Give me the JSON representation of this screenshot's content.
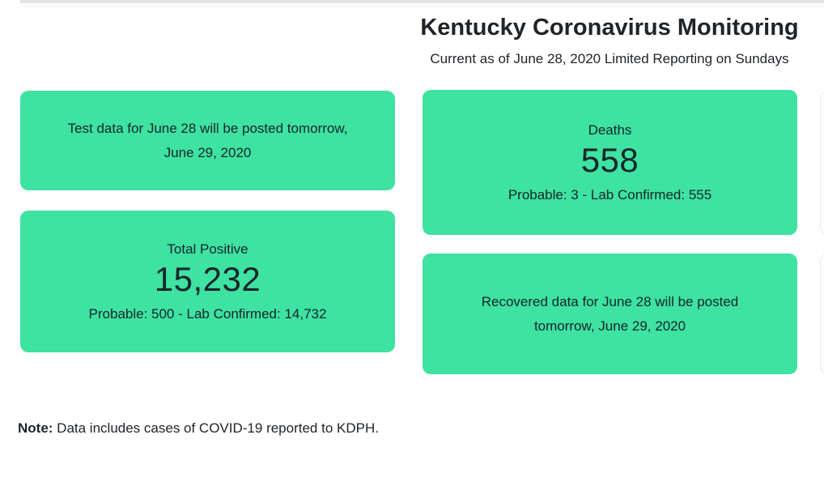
{
  "page": {
    "title": "Kentucky Coronavirus Monitoring",
    "subtitle": "Current as of June 28, 2020 Limited Reporting on Sundays",
    "note_label": "Note:",
    "note_text": " Data includes cases of COVID-19 reported to KDPH."
  },
  "colors": {
    "card_green": "#3ee2a1",
    "text_dark": "#212529",
    "topbar_gray": "#e3e3e3"
  },
  "cards": {
    "test_notice": {
      "lines": [
        "Test data for June 28 will be posted tomorrow,",
        "June 29, 2020"
      ]
    },
    "deaths": {
      "label": "Deaths",
      "value": "558",
      "detail": "Probable: 3 - Lab Confirmed: 555"
    },
    "total_positive": {
      "label": "Total Positive",
      "value": "15,232",
      "detail": "Probable: 500 - Lab Confirmed: 14,732"
    },
    "recovered_notice": {
      "lines": [
        "Recovered data for June 28 will be posted",
        "tomorrow, June 29, 2020"
      ]
    }
  }
}
